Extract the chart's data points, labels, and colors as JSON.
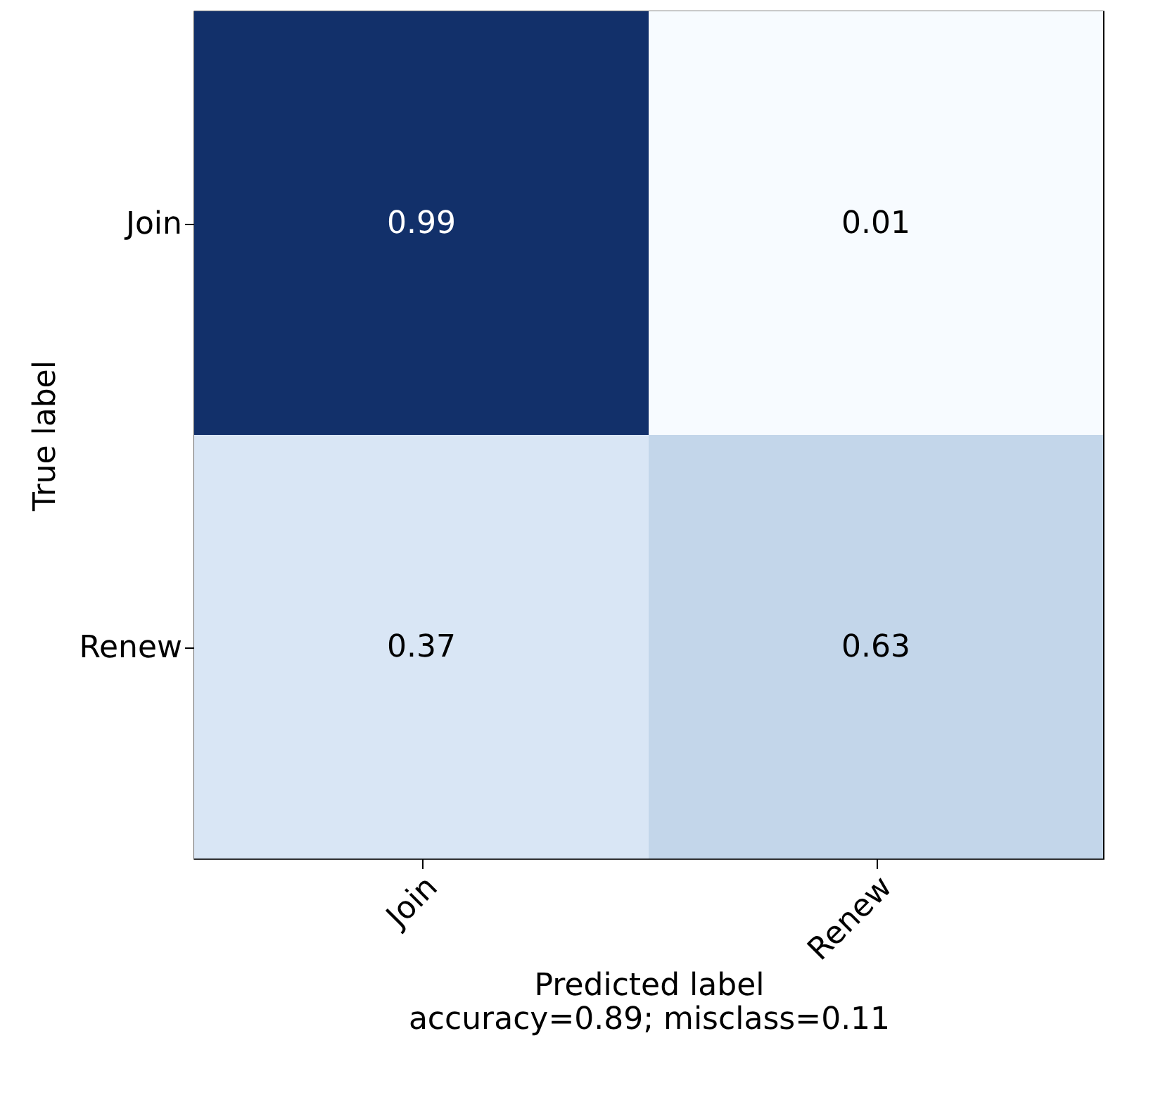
{
  "chart_data": {
    "type": "heatmap",
    "xlabel": "Predicted label\naccuracy=0.89; misclass=0.11",
    "ylabel": "True label",
    "categories": [
      "Join",
      "Renew"
    ],
    "y_categories": [
      "Join",
      "Renew"
    ],
    "cells": [
      [
        0.99,
        0.01
      ],
      [
        0.37,
        0.63
      ]
    ],
    "colors": [
      "#12306a",
      "#f7fbff",
      "#d9e6f5",
      "#c3d6ea"
    ],
    "data_labels": true
  }
}
